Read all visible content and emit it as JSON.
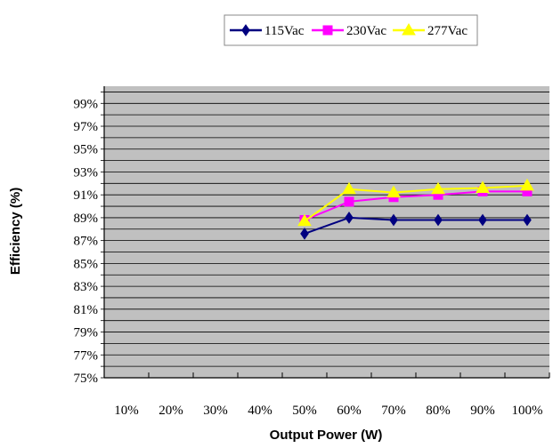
{
  "chart_data": {
    "type": "line",
    "title": "",
    "xlabel": "Output Power (W)",
    "ylabel": "Efficiency (%)",
    "categories": [
      "10%",
      "20%",
      "30%",
      "40%",
      "50%",
      "60%",
      "70%",
      "80%",
      "90%",
      "100%"
    ],
    "y_ticks": [
      "75%",
      "77%",
      "79%",
      "81%",
      "83%",
      "85%",
      "87%",
      "89%",
      "91%",
      "93%",
      "95%",
      "97%",
      "99%"
    ],
    "ylim": [
      75,
      100.5
    ],
    "grid": true,
    "legend_position": "top-center",
    "plot_background": "#c0c0c0",
    "series": [
      {
        "name": "115Vac",
        "color": "#000080",
        "marker": "diamond",
        "values": [
          null,
          null,
          null,
          null,
          87.6,
          89.0,
          88.8,
          88.8,
          88.8,
          88.8
        ]
      },
      {
        "name": "230Vac",
        "color": "#ff00ff",
        "marker": "square",
        "values": [
          null,
          null,
          null,
          null,
          88.8,
          90.4,
          90.8,
          91.0,
          91.3,
          91.3
        ]
      },
      {
        "name": "277Vac",
        "color": "#ffff00",
        "marker": "triangle",
        "values": [
          null,
          null,
          null,
          null,
          88.7,
          91.5,
          91.2,
          91.5,
          91.6,
          91.8
        ]
      }
    ]
  }
}
